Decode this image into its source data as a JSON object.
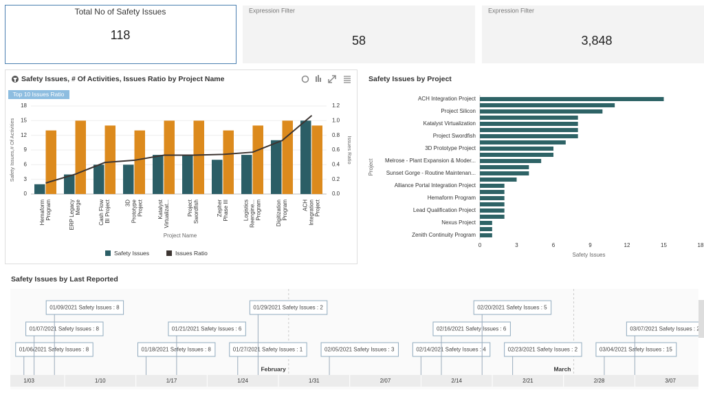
{
  "kpis": [
    {
      "title": "Total No of Safety Issues",
      "value": "118"
    },
    {
      "title": "Expression Filter",
      "value": "58"
    },
    {
      "title": "Expression Filter",
      "value": "3,848"
    }
  ],
  "chart_data": [
    {
      "type": "combo",
      "title": "Safety Issues, # Of Activities, Issues Ratio by Project Name",
      "badge": "Top 10 Issues Ratio",
      "categories": [
        "Hemaform Program",
        "ERP Legacy Merge",
        "Cash Flow BI Project",
        "3D Prototype Project",
        "Katalyst Virtualizat...",
        "Project Swordfish",
        "Zepher Phase III",
        "Logistics Reengine... Program",
        "Digitization Program",
        "ACH Integration Project"
      ],
      "series": [
        {
          "name": "Safety Issues",
          "color": "#2b5e66",
          "values": [
            2,
            4,
            6,
            6,
            8,
            8,
            7,
            8,
            11,
            15
          ]
        },
        {
          "color": "#dc8a1d",
          "values": [
            13,
            15,
            14,
            13,
            15,
            15,
            13,
            14,
            15,
            14
          ]
        },
        {
          "name": "Issues Ratio",
          "color": "#3c3431",
          "type": "line",
          "axis": "y2",
          "values": [
            0.15,
            0.27,
            0.43,
            0.46,
            0.53,
            0.53,
            0.54,
            0.57,
            0.73,
            1.07
          ]
        }
      ],
      "ylim": [
        0,
        18
      ],
      "yticks": [
        0,
        3,
        6,
        9,
        12,
        15,
        18
      ],
      "y2lim": [
        0,
        1.2
      ],
      "y2ticks": [
        {
          "value": 0,
          "label": "0.0"
        },
        0.2,
        0.4,
        0.6,
        0.8,
        {
          "value": 1,
          "label": "1.0"
        },
        1.2
      ],
      "xlabel": "Project Name",
      "ylabel": "Safety Issues,# Of Activities",
      "y2label": "Issues Ratio"
    },
    {
      "type": "barh",
      "title": "Safety Issues by Project",
      "categories": [
        "ACH Integration Project",
        null,
        "Project Silicon",
        null,
        "Katalyst Virtualization",
        null,
        "Project Swordfish",
        null,
        "3D Prototype Project",
        null,
        "Melrose - Plant Expansion & Moder...",
        null,
        "Sunset Gorge - Routine Maintenan...",
        null,
        "Alliance Portal Integration Project",
        null,
        "Hemaform Program",
        null,
        "Lead Qualification Project",
        null,
        "Nexus Project",
        null,
        "Zenith Continuity Program"
      ],
      "values": [
        15,
        11,
        10,
        8,
        8,
        8,
        8,
        7,
        6,
        6,
        5,
        4,
        4,
        3,
        2,
        2,
        2,
        2,
        2,
        2,
        1,
        1,
        1
      ],
      "color": "#2e6366",
      "xlim": [
        0,
        18
      ],
      "xticks": [
        0,
        3,
        6,
        9,
        12,
        15,
        18
      ],
      "xlabel": "Safety Issues",
      "ylabel": "Project"
    }
  ],
  "timeline": {
    "title": "Safety Issues by Last Reported",
    "events": [
      "01/06/2021 Safety Issues : 8",
      "01/07/2021 Safety Issues : 8",
      "01/09/2021 Safety Issues : 8",
      "01/18/2021 Safety Issues : 8",
      "01/21/2021 Safety Issues : 6",
      "01/27/2021 Safety Issues : 1",
      "01/29/2021 Safety Issues : 2",
      "02/05/2021 Safety Issues : 3",
      "02/14/2021 Safety Issues : 4",
      "02/16/2021 Safety Issues : 6",
      "02/20/2021 Safety Issues : 5",
      "02/23/2021 Safety Issues : 2",
      "03/04/2021 Safety Issues : 15",
      "03/07/2021 Safety Issues : 2"
    ],
    "week_labels": [
      "1/03",
      "1/10",
      "1/17",
      "1/24",
      "1/31",
      "2/07",
      "2/14",
      "2/21",
      "2/28",
      "3/07"
    ],
    "month_labels": [
      "February",
      "March"
    ]
  }
}
